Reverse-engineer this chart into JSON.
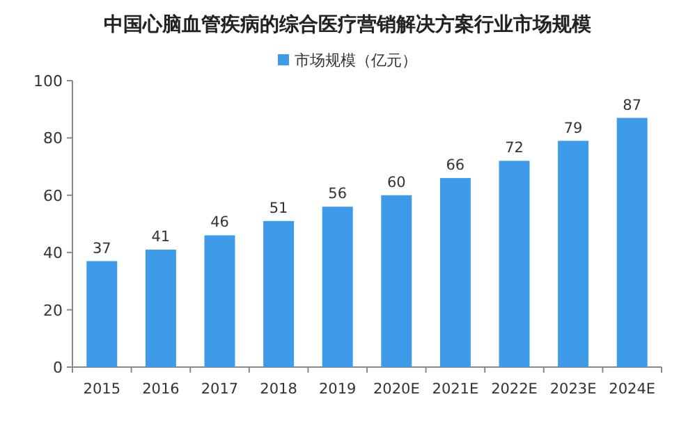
{
  "chart_data": {
    "type": "bar",
    "title": "中国心脑血管疾病的综合医疗营销解决方案行业市场规模",
    "categories": [
      "2015",
      "2016",
      "2017",
      "2018",
      "2019",
      "2020E",
      "2021E",
      "2022E",
      "2023E",
      "2024E"
    ],
    "series": [
      {
        "name": "市场规模（亿元）",
        "color": "#3d9be9",
        "values": [
          37,
          41,
          46,
          51,
          56,
          60,
          66,
          72,
          79,
          87
        ]
      }
    ],
    "ylim": [
      0,
      100
    ],
    "yticks": [
      0,
      20,
      40,
      60,
      80,
      100
    ],
    "data_labels": true,
    "legend": "top",
    "grid": false
  }
}
